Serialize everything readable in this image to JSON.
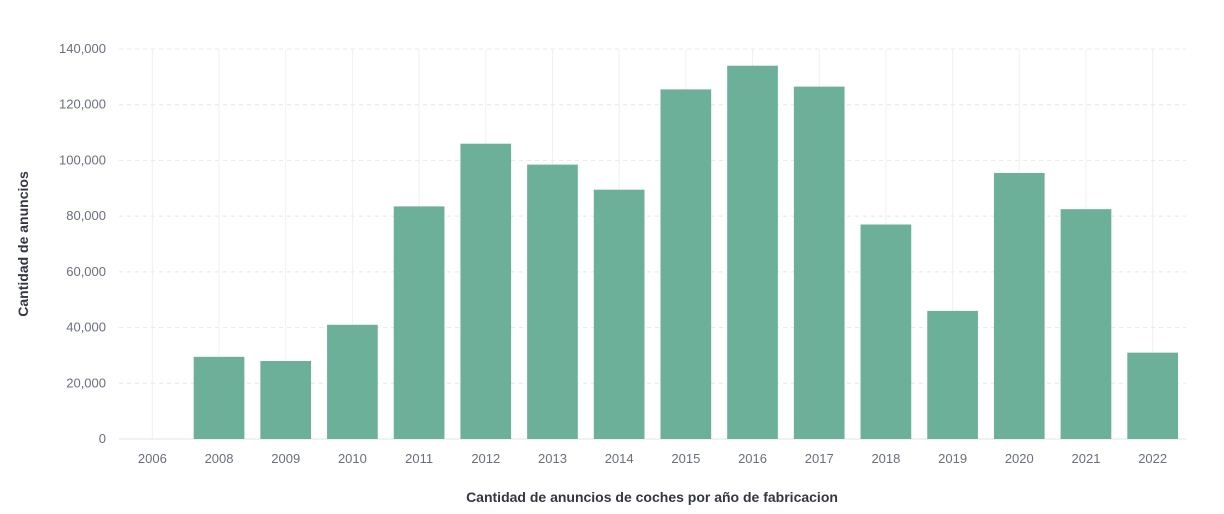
{
  "chart_data": {
    "type": "bar",
    "title": "",
    "xlabel": "Cantidad de anuncios de coches por año de fabricacion",
    "ylabel": "Cantidad de anuncios",
    "categories": [
      "2006",
      "2008",
      "2009",
      "2010",
      "2011",
      "2012",
      "2013",
      "2014",
      "2015",
      "2016",
      "2017",
      "2018",
      "2019",
      "2020",
      "2021",
      "2022"
    ],
    "values": [
      0,
      29500,
      28000,
      41000,
      83500,
      106000,
      98500,
      89500,
      125500,
      134000,
      126500,
      77000,
      46000,
      95500,
      82500,
      31000
    ],
    "ylim": [
      0,
      140000
    ],
    "yticks": [
      "0",
      "20,000",
      "40,000",
      "60,000",
      "80,000",
      "100,000",
      "120,000",
      "140,000"
    ],
    "ytick_values": [
      0,
      20000,
      40000,
      60000,
      80000,
      100000,
      120000,
      140000
    ],
    "grid": true,
    "bar_color": "#6db09a"
  }
}
